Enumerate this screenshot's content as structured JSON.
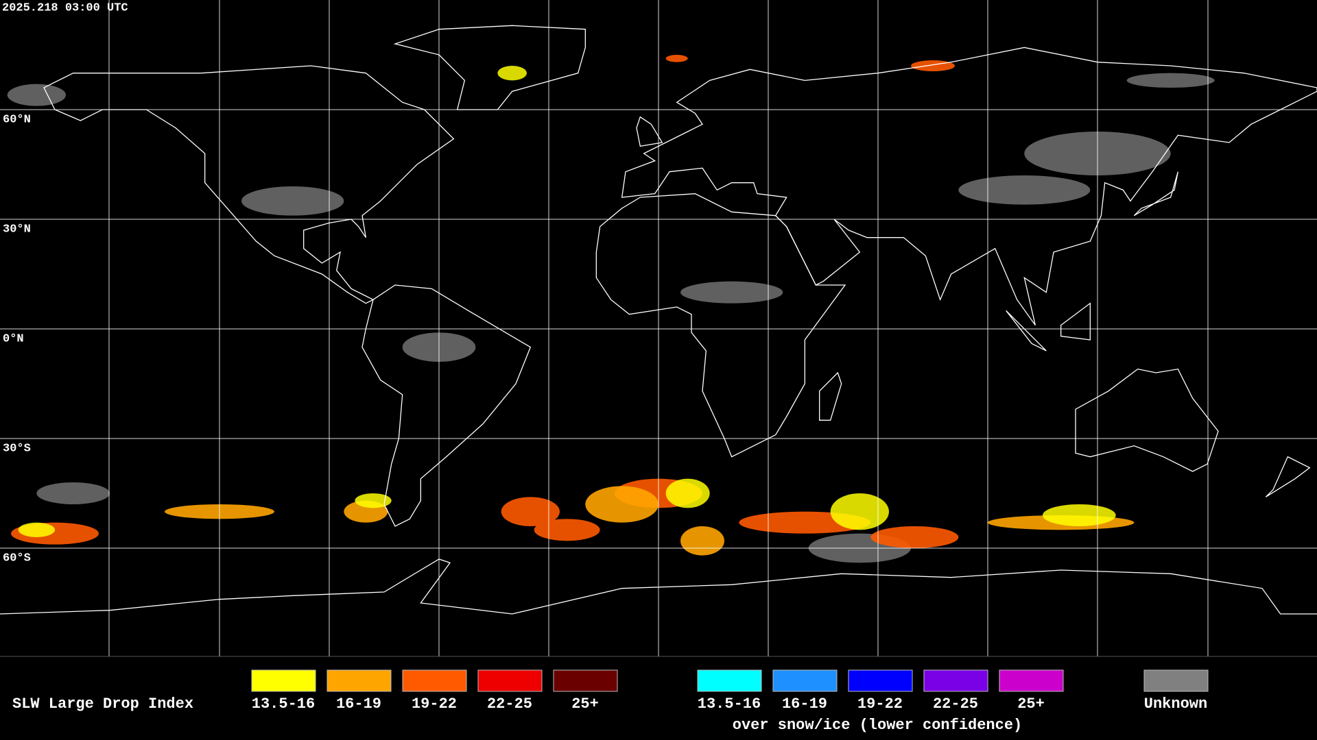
{
  "timestamp": "2025.218 03:00 UTC",
  "latitude_labels": [
    "60°N",
    "30°N",
    "0°N",
    "30°S",
    "60°S"
  ],
  "legend": {
    "title": "SLW Large Drop Index",
    "groups": [
      {
        "items": [
          {
            "label": "13.5-16",
            "color": "#ffff00"
          },
          {
            "label": "16-19",
            "color": "#ffa500"
          },
          {
            "label": "19-22",
            "color": "#ff5a00"
          },
          {
            "label": "22-25",
            "color": "#ee0000"
          },
          {
            "label": "25+",
            "color": "#6a0000"
          }
        ]
      },
      {
        "items": [
          {
            "label": "13.5-16",
            "color": "#00ffff"
          },
          {
            "label": "16-19",
            "color": "#1e90ff"
          },
          {
            "label": "19-22",
            "color": "#0000ff"
          },
          {
            "label": "22-25",
            "color": "#7a00e6"
          },
          {
            "label": "25+",
            "color": "#cc00cc"
          }
        ],
        "caption": "over snow/ice (lower confidence)"
      }
    ],
    "unknown": {
      "label": "Unknown",
      "color": "#808080"
    }
  }
}
